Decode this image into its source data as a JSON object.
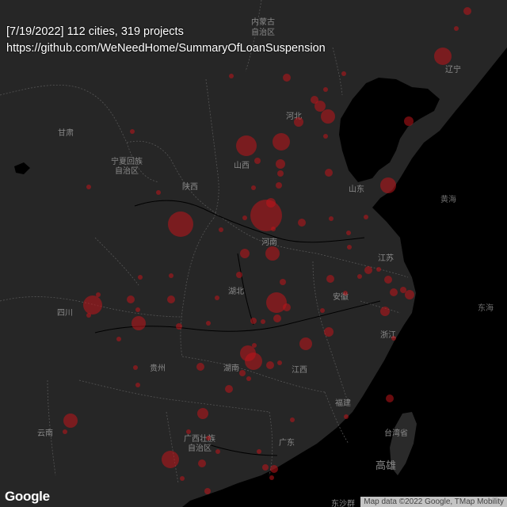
{
  "header": {
    "summary_line": "[7/19/2022] 112 cities, 319 projects",
    "url_line": "https://github.com/WeNeedHome/SummaryOfLoanSuspension"
  },
  "map": {
    "land_color": "#262626",
    "sea_color": "#000000",
    "marker_color": "#c0141a",
    "labels": {
      "neimenggu": [
        "内蒙古",
        "自治区"
      ],
      "liaoning": "辽宁",
      "gansu": "甘肃",
      "ningxia": [
        "宁夏回族",
        "自治区"
      ],
      "hebei": "河北",
      "shanxi": "山西",
      "shaanxi": "陕西",
      "shandong": "山东",
      "huanghai": "黄海",
      "henan": "河南",
      "jiangsu": "江苏",
      "hubei": "湖北",
      "anhui": "安徽",
      "sichuan": "四川",
      "donghai": "东海",
      "zhejiang": "浙江",
      "guizhou": "贵州",
      "hunan": "湖南",
      "jiangxi": "江西",
      "fujian": "福建",
      "yunnan": "云南",
      "guangxi": [
        "广西壮族",
        "自治区"
      ],
      "guangdong": "广东",
      "taiwan": "台湾省",
      "gaoxiong": "高雄",
      "dongsha": "东沙群"
    }
  },
  "footer": {
    "logo": "Google",
    "attribution": "Map data ©2022 Google, TMap Mobility"
  }
}
